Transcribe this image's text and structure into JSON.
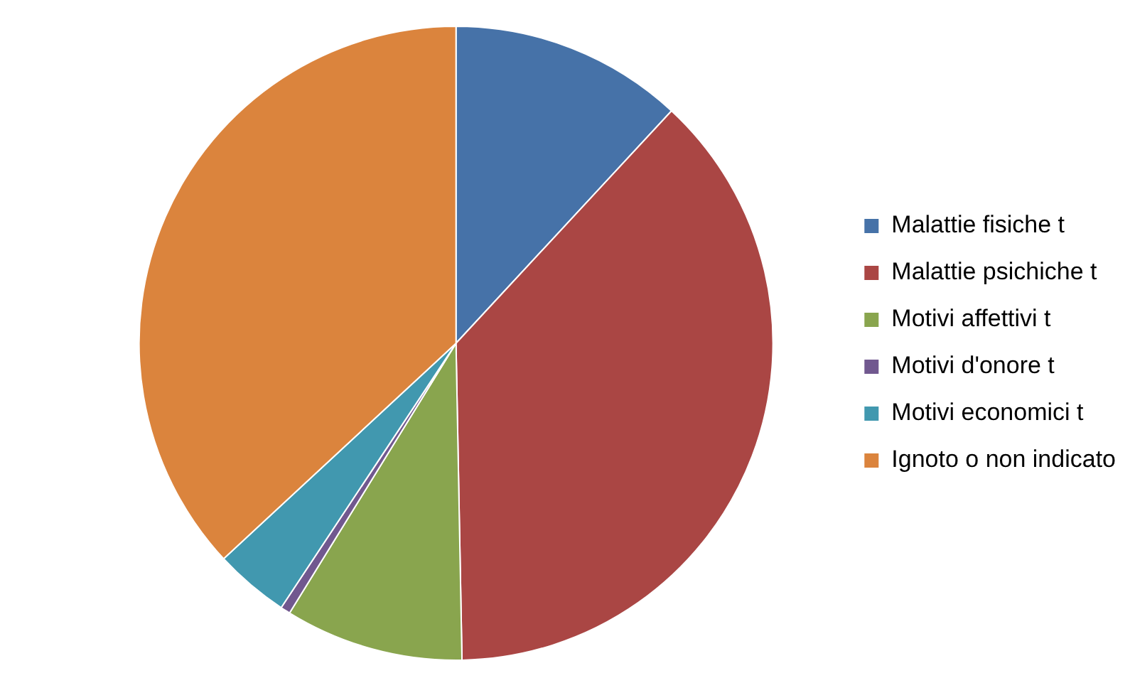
{
  "chart_data": {
    "type": "pie",
    "categories": [
      "Malattie fisiche t",
      "Malattie psichiche t",
      "Motivi affettivi t",
      "Motivi d'onore t",
      "Motivi economici t",
      "Ignoto o non indicato"
    ],
    "values": [
      11.9,
      37.8,
      9.1,
      0.5,
      3.8,
      36.9
    ],
    "colors": [
      "#4672a8",
      "#aa4644",
      "#89a54e",
      "#71588f",
      "#4198af",
      "#db843d"
    ],
    "legend": "right"
  }
}
